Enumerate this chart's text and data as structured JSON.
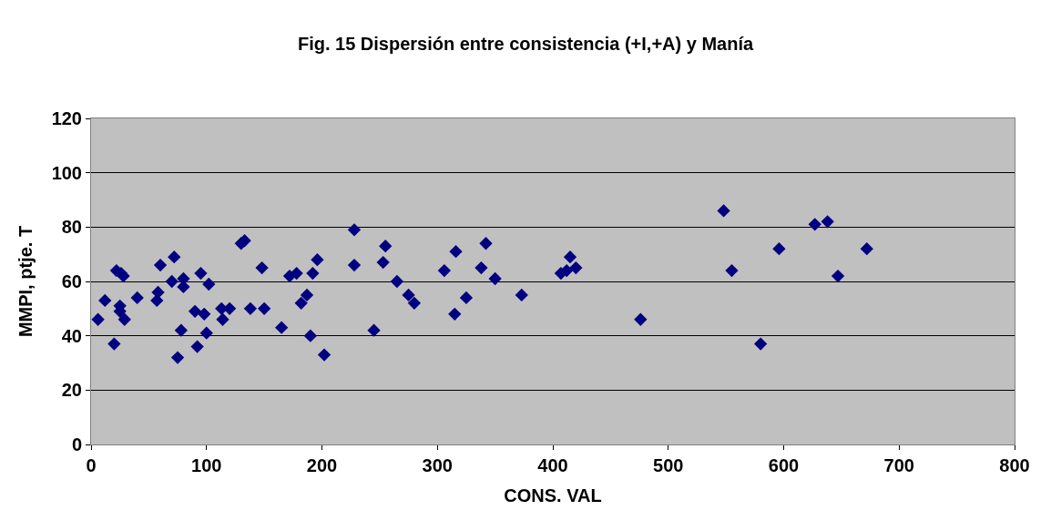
{
  "chart_data": {
    "type": "scatter",
    "title": "Fig. 15 Dispersión entre consistencia (+I,+A) y Manía",
    "xlabel": "CONS. VAL",
    "ylabel": "MMPI, ptje. T",
    "x": [
      6,
      12,
      20,
      22,
      26,
      25,
      25,
      29,
      28,
      40,
      57,
      58,
      60,
      70,
      72,
      75,
      78,
      80,
      80,
      90,
      92,
      95,
      98,
      100,
      102,
      113,
      114,
      120,
      130,
      133,
      138,
      148,
      150,
      165,
      172,
      178,
      182,
      187,
      190,
      192,
      196,
      202,
      228,
      228,
      245,
      253,
      255,
      265,
      275,
      280,
      306,
      315,
      316,
      325,
      338,
      342,
      350,
      373,
      407,
      412,
      415,
      420,
      476,
      548,
      555,
      580,
      596,
      627,
      638,
      647,
      672
    ],
    "series": [
      {
        "color": "#000080",
        "values": [
          46,
          53,
          37,
          64,
          63,
          51,
          49,
          46,
          62,
          54,
          53,
          56,
          66,
          60,
          69,
          32,
          42,
          58,
          61,
          49,
          36,
          63,
          48,
          41,
          59,
          50,
          46,
          50,
          74,
          75,
          50,
          65,
          50,
          43,
          62,
          63,
          52,
          55,
          40,
          63,
          68,
          33,
          79,
          66,
          42,
          67,
          73,
          60,
          55,
          52,
          64,
          48,
          71,
          54,
          65,
          74,
          61,
          55,
          63,
          64,
          69,
          65,
          46,
          86,
          64,
          37,
          72,
          81,
          82,
          62,
          72
        ]
      }
    ],
    "xlim": [
      0,
      800
    ],
    "xticks": [
      0,
      100,
      200,
      300,
      400,
      500,
      600,
      700,
      800
    ],
    "ylim": [
      0,
      120
    ],
    "yticks": [
      0,
      20,
      40,
      60,
      80,
      100,
      120
    ],
    "grid": "y",
    "legend": false,
    "marker": "diamond"
  }
}
